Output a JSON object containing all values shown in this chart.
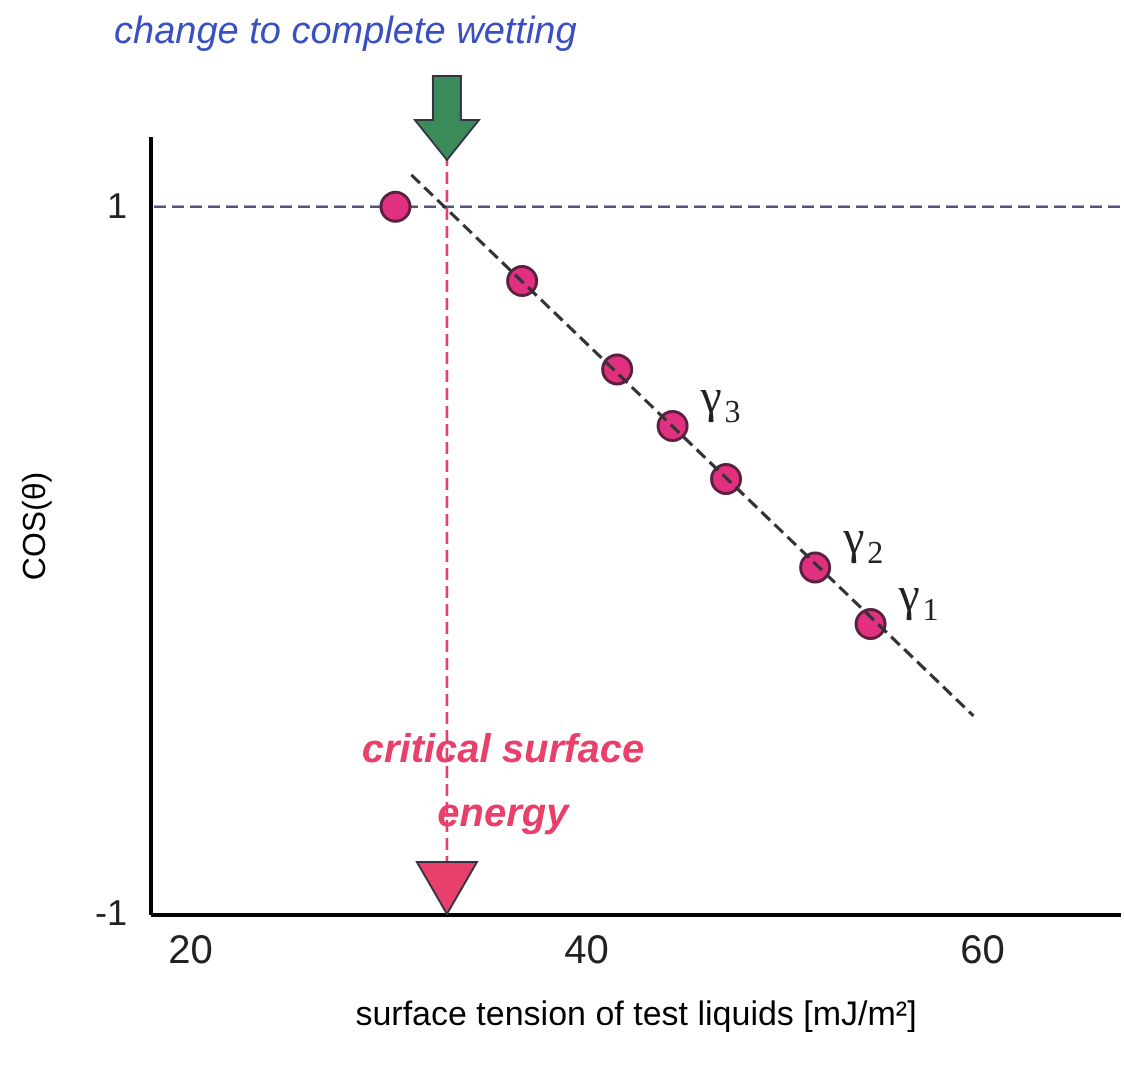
{
  "chart_data": {
    "type": "scatter",
    "title": "change to complete wetting",
    "xlabel": "surface tension of test liquids [mJ/m²]",
    "ylabel": "COS(θ)",
    "xlim": [
      18,
      67
    ],
    "ylim": [
      -1,
      1.2
    ],
    "xticks": [
      20,
      40,
      60
    ],
    "yticks": [
      -1,
      1
    ],
    "grid": false,
    "series": [
      {
        "marker": "circle",
        "color": "#e0307f",
        "x": [
          30.4,
          36.8,
          41.6,
          44.4,
          47.1,
          51.6,
          54.4
        ],
        "values": [
          1.0,
          0.79,
          0.54,
          0.38,
          0.23,
          -0.02,
          -0.18
        ]
      },
      {
        "type": "line",
        "line_style": "dashed",
        "color": "#333333",
        "x": [
          31.2,
          59.6
        ],
        "values": [
          1.09,
          -0.44
        ]
      }
    ],
    "ref_lines": [
      {
        "axis": "y",
        "value": 1,
        "color": "#55557a",
        "line_style": "dashed"
      },
      {
        "axis": "x",
        "value": 33,
        "label": "critical surface energy",
        "color": "#e8406a",
        "line_style": "dashed"
      }
    ],
    "annotations": [
      {
        "text": "γ$_{3}$",
        "x": 44.4,
        "y": 0.38
      },
      {
        "text": "γ$_{2}$",
        "x": 51.6,
        "y": -0.02
      },
      {
        "text": "γ$_{1}$",
        "x": 54.4,
        "y": -0.18
      }
    ]
  }
}
